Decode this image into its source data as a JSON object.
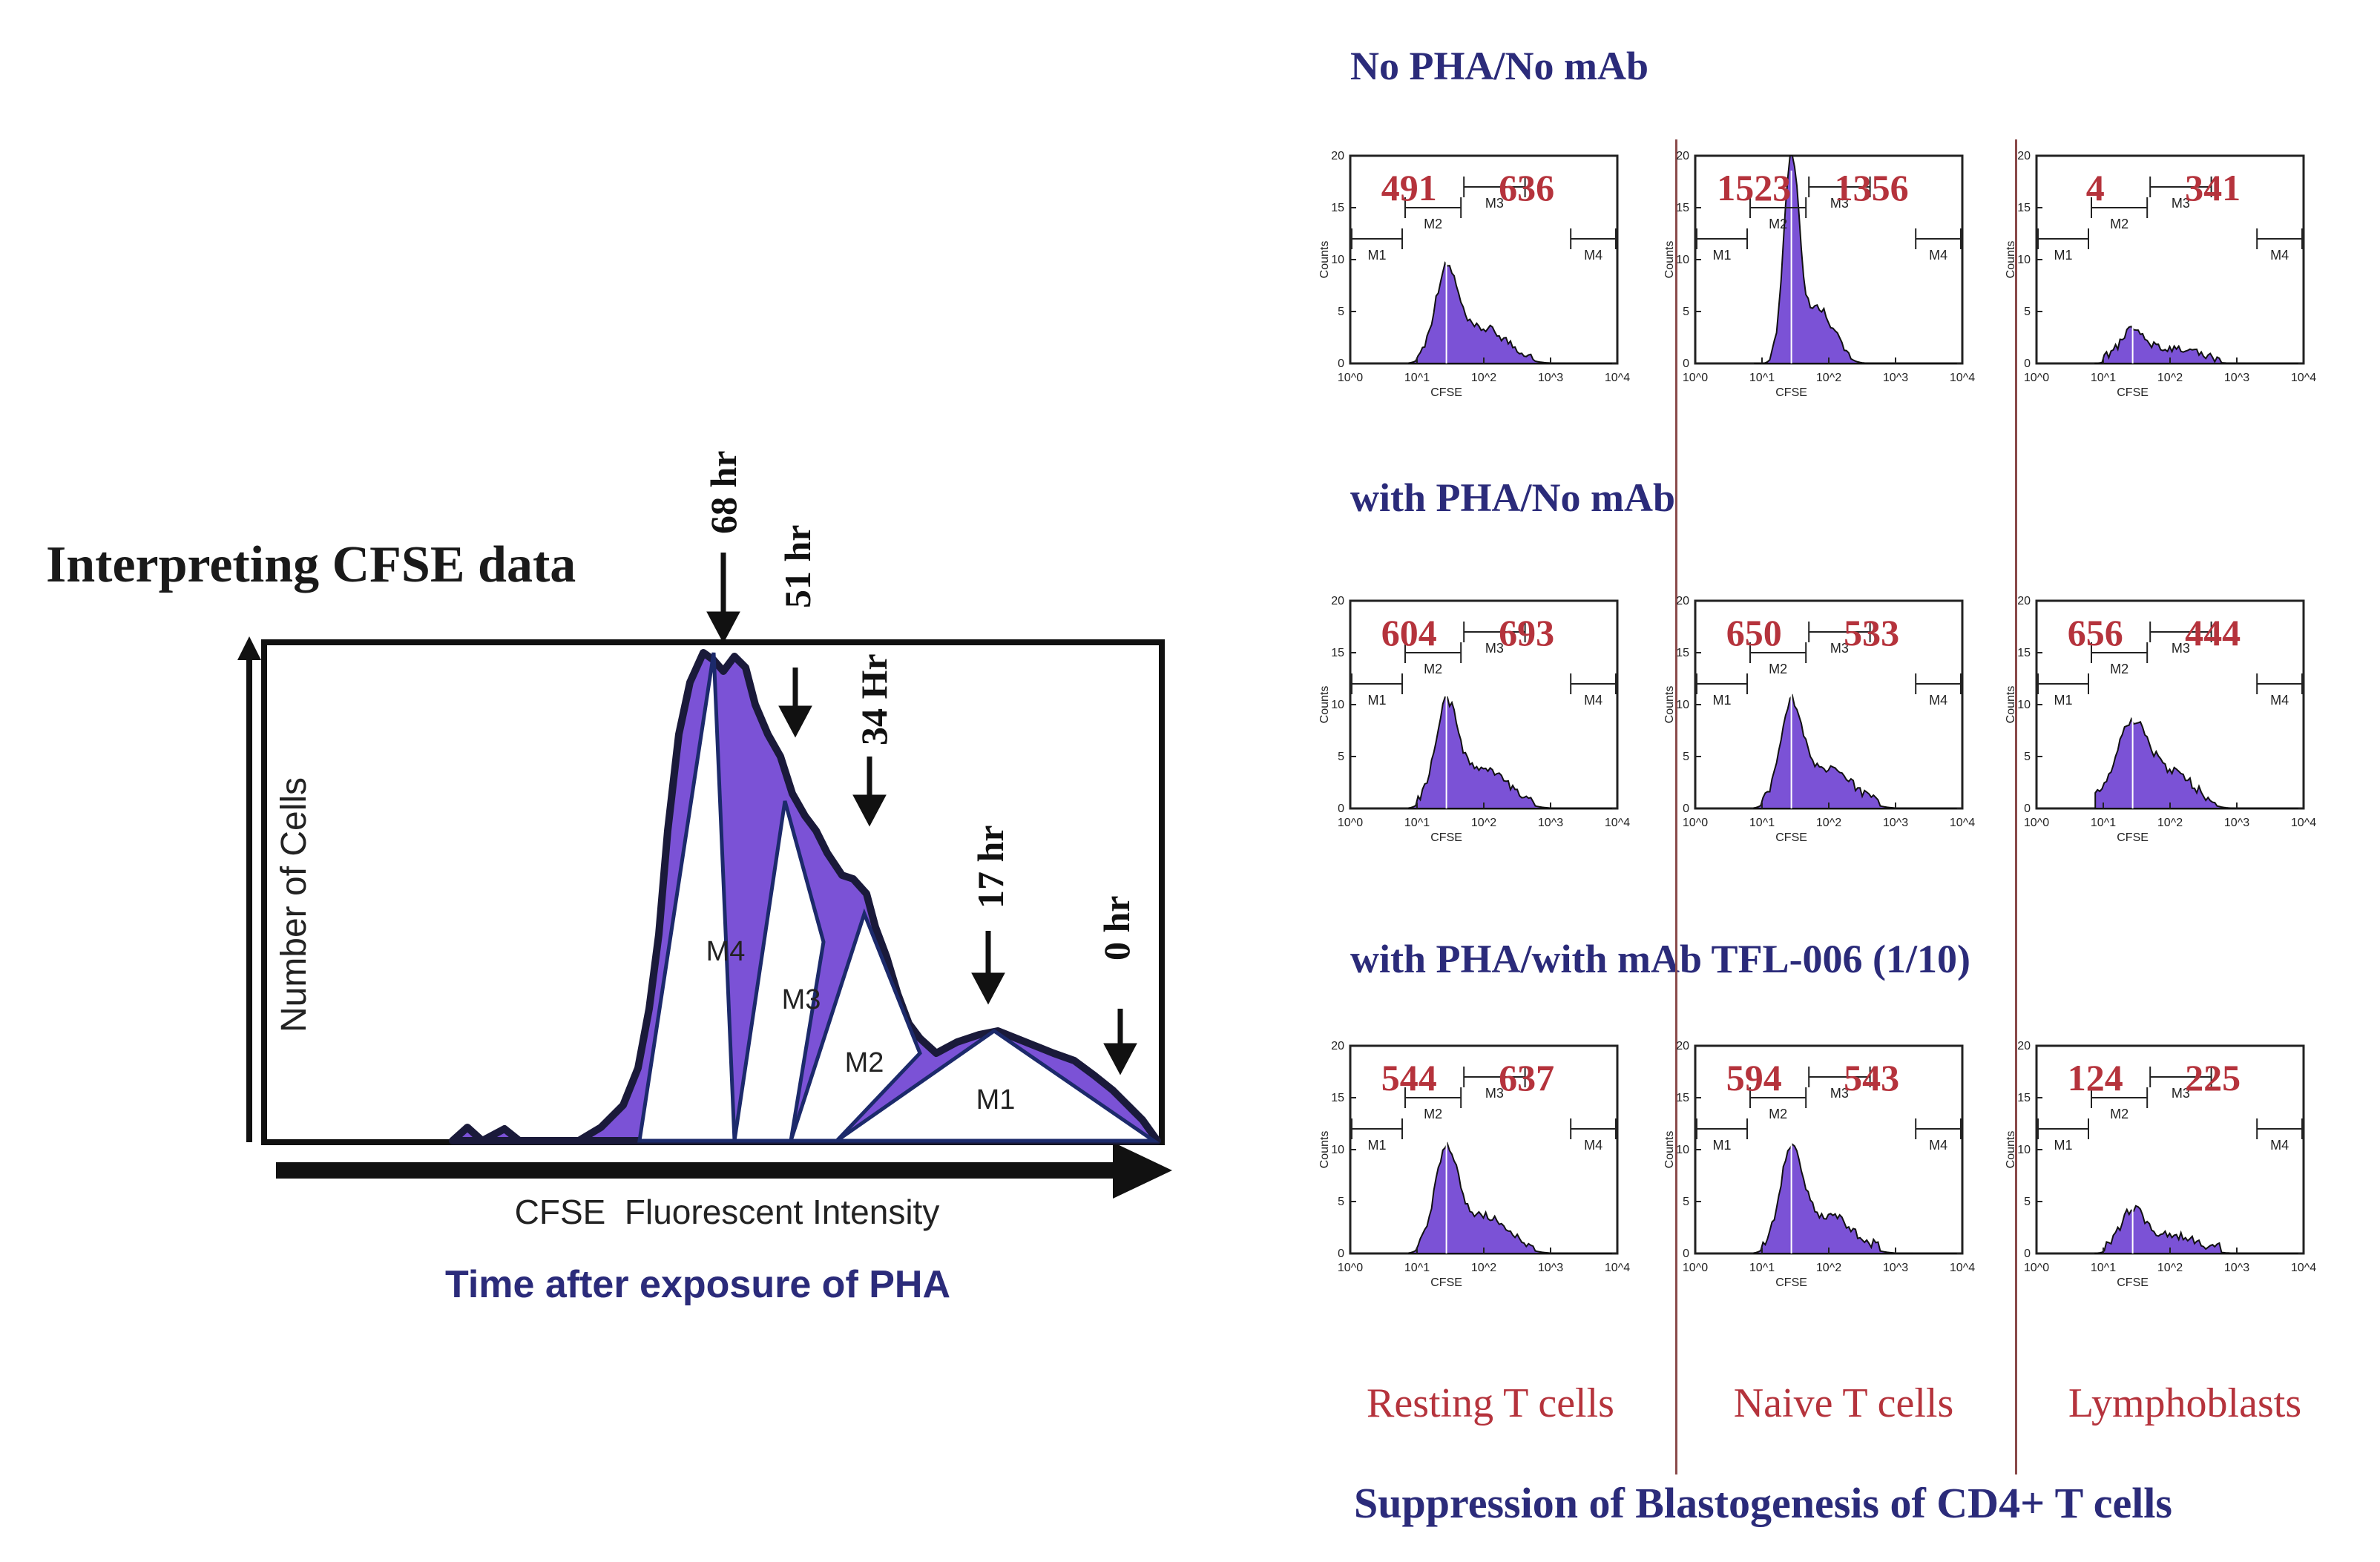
{
  "left_panel": {
    "title": "Interpreting CFSE data",
    "ylabel": "Number of Cells",
    "xlabel": "CFSE  Fluorescent Intensity",
    "caption": "Time after exposure of PHA",
    "markers": [
      {
        "id": "m4",
        "label": "M4",
        "time": "68 hr"
      },
      {
        "id": "m3",
        "label": "M3",
        "time": "51 hr"
      },
      {
        "id": "m2",
        "label": "M2",
        "time": "34 Hr"
      },
      {
        "id": "m1",
        "label": "M1",
        "time": "17 hr"
      },
      {
        "id": "m0",
        "label": "",
        "time": "0 hr"
      }
    ],
    "colors": {
      "fill": "#7b52d6",
      "edge": "#1a1a3a",
      "triangle_stroke": "#1c2a6b"
    }
  },
  "right_panel": {
    "condition_titles": [
      "No PHA/No mAb",
      "with PHA/No mAb",
      "with PHA/with mAb TFL-006 (1/10)"
    ],
    "column_labels": [
      "Resting T cells",
      "Naive T cells",
      "Lymphoblasts"
    ],
    "footer": "Suppression of Blastogenesis of CD4+ T cells",
    "colors": {
      "value_text": "#b5333c",
      "title_text": "#2b2b7a",
      "fill": "#7b52d6"
    }
  },
  "chart_data": [
    {
      "type": "area",
      "title": "Interpreting CFSE data",
      "xlabel": "CFSE  Fluorescent Intensity",
      "ylabel": "Number of Cells",
      "description_caption": "Time after exposure of PHA",
      "generations": [
        {
          "gate": "M4",
          "time": "68 hr"
        },
        {
          "gate": "M3",
          "time": "51 hr"
        },
        {
          "gate": "M2",
          "time": "34 Hr"
        },
        {
          "gate": "M1",
          "time": "17 hr"
        },
        {
          "gate": "",
          "time": "0 hr"
        }
      ]
    },
    {
      "type": "histogram-grid",
      "xlabel": "CFSE",
      "ylabel": "Counts",
      "x_ticks": [
        "10^0",
        "10^1",
        "10^2",
        "10^3",
        "10^4"
      ],
      "y_ticks": [
        "0",
        "5",
        "10",
        "15",
        "20"
      ],
      "ylim": [
        0,
        20
      ],
      "gates": [
        "M1",
        "M2",
        "M3",
        "M4"
      ],
      "rows": [
        {
          "condition": "No PHA/No mAb",
          "cells": [
            {
              "population": "Resting T cells",
              "left_value": "491",
              "right_value": "636",
              "peak": 9,
              "shape": "normal"
            },
            {
              "population": "Naive T cells",
              "left_value": "1523",
              "right_value": "1356",
              "peak": 20,
              "shape": "tall"
            },
            {
              "population": "Lymphoblasts",
              "left_value": "4",
              "right_value": "341",
              "peak": 3,
              "shape": "low"
            }
          ]
        },
        {
          "condition": "with PHA/No mAb",
          "cells": [
            {
              "population": "Resting T cells",
              "left_value": "604",
              "right_value": "693",
              "peak": 10,
              "shape": "normal"
            },
            {
              "population": "Naive T cells",
              "left_value": "650",
              "right_value": "533",
              "peak": 10,
              "shape": "normal"
            },
            {
              "population": "Lymphoblasts",
              "left_value": "656",
              "right_value": "444",
              "peak": 8,
              "shape": "wide"
            }
          ]
        },
        {
          "condition": "with PHA/with mAb TFL-006 (1/10)",
          "cells": [
            {
              "population": "Resting T cells",
              "left_value": "544",
              "right_value": "637",
              "peak": 10,
              "shape": "normal"
            },
            {
              "population": "Naive T cells",
              "left_value": "594",
              "right_value": "543",
              "peak": 10,
              "shape": "normal"
            },
            {
              "population": "Lymphoblasts",
              "left_value": "124",
              "right_value": "225",
              "peak": 4,
              "shape": "low"
            }
          ]
        }
      ]
    }
  ]
}
